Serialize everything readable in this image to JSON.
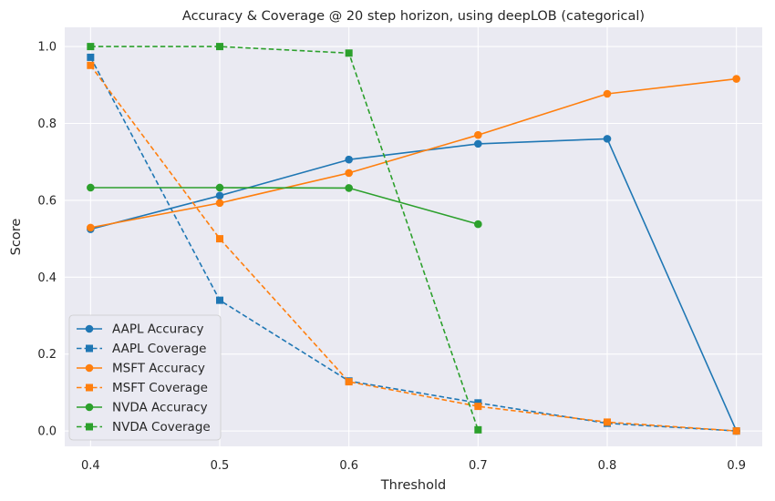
{
  "chart_data": {
    "type": "line",
    "title": "Accuracy & Coverage @ 20 step horizon, using deepLOB (categorical)",
    "xlabel": "Threshold",
    "ylabel": "Score",
    "xlim": [
      0.38,
      0.92
    ],
    "ylim": [
      -0.04,
      1.05
    ],
    "x_ticks": [
      "0.4",
      "0.5",
      "0.6",
      "0.7",
      "0.8",
      "0.9"
    ],
    "y_ticks": [
      "0.0",
      "0.2",
      "0.4",
      "0.6",
      "0.8",
      "1.0"
    ],
    "grid": true,
    "legend_position": "lower-left",
    "series": [
      {
        "name": "AAPL Accuracy",
        "color": "#1f77b4",
        "style": "solid",
        "marker": "circle",
        "x": [
          0.4,
          0.5,
          0.6,
          0.7,
          0.8,
          0.9
        ],
        "y": [
          0.525,
          0.612,
          0.706,
          0.747,
          0.76,
          0.0
        ]
      },
      {
        "name": "AAPL Coverage",
        "color": "#1f77b4",
        "style": "dashed",
        "marker": "square",
        "x": [
          0.4,
          0.5,
          0.6,
          0.7,
          0.8,
          0.9
        ],
        "y": [
          0.972,
          0.34,
          0.13,
          0.073,
          0.02,
          0.0
        ]
      },
      {
        "name": "MSFT Accuracy",
        "color": "#ff7f0e",
        "style": "solid",
        "marker": "circle",
        "x": [
          0.4,
          0.5,
          0.6,
          0.7,
          0.8,
          0.9
        ],
        "y": [
          0.529,
          0.593,
          0.671,
          0.77,
          0.877,
          0.916
        ]
      },
      {
        "name": "MSFT Coverage",
        "color": "#ff7f0e",
        "style": "dashed",
        "marker": "square",
        "x": [
          0.4,
          0.5,
          0.6,
          0.7,
          0.8,
          0.9
        ],
        "y": [
          0.951,
          0.5,
          0.128,
          0.064,
          0.023,
          0.0
        ]
      },
      {
        "name": "NVDA Accuracy",
        "color": "#2ca02c",
        "style": "solid",
        "marker": "circle",
        "x": [
          0.4,
          0.5,
          0.6,
          0.7
        ],
        "y": [
          0.633,
          0.633,
          0.632,
          0.538
        ]
      },
      {
        "name": "NVDA Coverage",
        "color": "#2ca02c",
        "style": "dashed",
        "marker": "square",
        "x": [
          0.4,
          0.5,
          0.6,
          0.7
        ],
        "y": [
          1.0,
          1.0,
          0.983,
          0.003
        ]
      }
    ],
    "colors": {
      "background": "#eaeaf2",
      "grid": "#ffffff",
      "text": "#262626"
    }
  }
}
